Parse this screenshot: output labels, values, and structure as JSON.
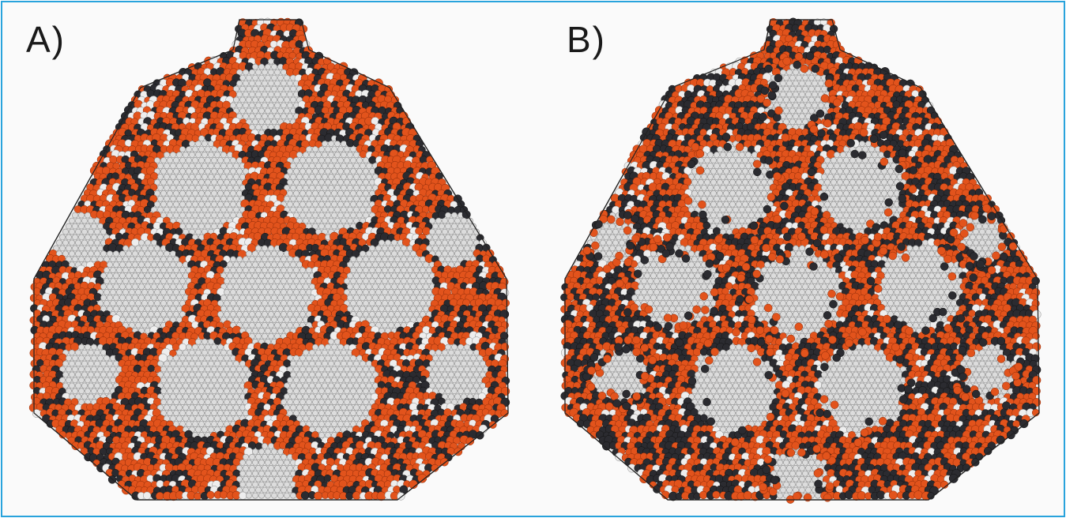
{
  "figure": {
    "panels": [
      {
        "label": "A)",
        "description_colors": {
          "facet": "#dcdcdc",
          "facet_atom_outline": "#8a8a8a",
          "orange_atom": "#e2531c",
          "dark_atom": "#2b2b30",
          "outline": "#222222"
        },
        "disorder_level": 0.35
      },
      {
        "label": "B)",
        "description_colors": {
          "facet": "#dcdcdc",
          "facet_atom_outline": "#8a8a8a",
          "orange_atom": "#e2531c",
          "dark_atom": "#2b2b30",
          "outline": "#222222"
        },
        "disorder_level": 0.75
      }
    ],
    "frame_color": "#29a3dc"
  }
}
